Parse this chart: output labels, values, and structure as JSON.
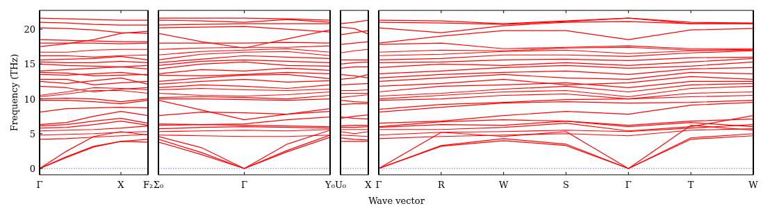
{
  "chart_data": [
    {
      "type": "line",
      "ylabel": "Frequency (THz)",
      "categories": [
        "Γ",
        null,
        null,
        "X",
        "F₂"
      ],
      "ylim": [
        -0.9,
        22.7
      ],
      "yticks": [
        0,
        5,
        10,
        15,
        20
      ],
      "grid": false,
      "line_style": "solid",
      "marker": "none",
      "ref_lines": [
        {
          "axis": "y",
          "value": 0,
          "color": "#0000ff",
          "line_style": "dotted"
        }
      ],
      "series": [
        {
          "color": "#ff0000",
          "values": [
            0,
            1.6,
            3.1,
            3.9,
            3.8
          ]
        },
        {
          "color": "#ff0000",
          "values": [
            0,
            1.7,
            3.2,
            3.9,
            4.2
          ]
        },
        {
          "color": "#ff0000",
          "values": [
            0,
            2.5,
            4.6,
            5.3,
            4.8
          ]
        },
        {
          "color": "#ff0000",
          "values": [
            4.2,
            4.3,
            4.5,
            4.7,
            4.9
          ]
        },
        {
          "color": "#ff0000",
          "values": [
            4.8,
            4.9,
            5.0,
            5.2,
            5.3
          ]
        },
        {
          "color": "#ff0000",
          "values": [
            5.4,
            5.5,
            5.6,
            5.8,
            6.1
          ]
        },
        {
          "color": "#ff0000",
          "values": [
            5.8,
            5.9,
            6.3,
            6.8,
            6.2
          ]
        },
        {
          "color": "#ff0000",
          "values": [
            6.1,
            6.3,
            6.8,
            7.2,
            6.5
          ]
        },
        {
          "color": "#ff0000",
          "values": [
            6.3,
            6.6,
            7.5,
            8.2,
            7.6
          ]
        },
        {
          "color": "#ff0000",
          "values": [
            8.1,
            8.6,
            8.7,
            8.8,
            8.7
          ]
        },
        {
          "color": "#ff0000",
          "values": [
            9.8,
            9.8,
            9.6,
            9.3,
            9.8
          ]
        },
        {
          "color": "#ff0000",
          "values": [
            10.0,
            10.1,
            10.0,
            9.6,
            10.0
          ]
        },
        {
          "color": "#ff0000",
          "values": [
            10.3,
            10.7,
            11.2,
            11.2,
            10.8
          ]
        },
        {
          "color": "#ff0000",
          "values": [
            10.5,
            11.0,
            11.6,
            11.5,
            11.3
          ]
        },
        {
          "color": "#ff0000",
          "values": [
            11.8,
            11.6,
            11.0,
            11.4,
            11.6
          ]
        },
        {
          "color": "#ff0000",
          "values": [
            12.5,
            12.2,
            12.6,
            13.0,
            12.1
          ]
        },
        {
          "color": "#ff0000",
          "values": [
            12.8,
            12.8,
            12.0,
            12.3,
            12.5
          ]
        },
        {
          "color": "#ff0000",
          "values": [
            13.5,
            13.4,
            13.6,
            13.8,
            13.4
          ]
        },
        {
          "color": "#ff0000",
          "values": [
            13.8,
            13.7,
            13.3,
            13.4,
            13.5
          ]
        },
        {
          "color": "#ff0000",
          "values": [
            14.0,
            14.2,
            14.4,
            14.6,
            14.3
          ]
        },
        {
          "color": "#ff0000",
          "values": [
            15.0,
            14.8,
            14.7,
            14.6,
            14.8
          ]
        },
        {
          "color": "#ff0000",
          "values": [
            15.3,
            15.2,
            15.2,
            15.4,
            15.2
          ]
        },
        {
          "color": "#ff0000",
          "values": [
            15.6,
            15.7,
            15.8,
            16.1,
            15.6
          ]
        },
        {
          "color": "#ff0000",
          "values": [
            16.2,
            16.2,
            16.0,
            16.2,
            16.3
          ]
        },
        {
          "color": "#ff0000",
          "values": [
            16.7,
            16.7,
            17.0,
            17.1,
            17.1
          ]
        },
        {
          "color": "#ff0000",
          "values": [
            17.5,
            17.9,
            18.5,
            19.4,
            19.7
          ]
        },
        {
          "color": "#ff0000",
          "values": [
            18.0,
            18.0,
            18.0,
            17.9,
            18.0
          ]
        },
        {
          "color": "#ff0000",
          "values": [
            18.5,
            18.4,
            18.3,
            18.2,
            18.2
          ]
        },
        {
          "color": "#ff0000",
          "values": [
            20.2,
            20.1,
            19.9,
            19.5,
            19.4
          ]
        },
        {
          "color": "#ff0000",
          "values": [
            21.0,
            20.9,
            20.7,
            20.6,
            20.6
          ]
        },
        {
          "color": "#ff0000",
          "values": [
            21.6,
            21.5,
            21.4,
            21.3,
            21.3
          ]
        }
      ]
    },
    {
      "type": "line",
      "xlabel": "Wave vector",
      "categories": [
        "Σ₀",
        null,
        "Γ",
        null,
        "Y₀"
      ],
      "ylim": [
        -0.9,
        22.7
      ],
      "tick_labels": "x",
      "grid": false,
      "line_style": "solid",
      "marker": "none",
      "ref_lines": [
        {
          "axis": "y",
          "value": 0,
          "color": "#0000ff",
          "line_style": "dotted"
        }
      ],
      "series": [
        {
          "color": "#ff0000",
          "values": [
            3.8,
            2.0,
            0,
            2.4,
            4.5
          ]
        },
        {
          "color": "#ff0000",
          "values": [
            4.2,
            2.3,
            0,
            2.6,
            4.8
          ]
        },
        {
          "color": "#ff0000",
          "values": [
            4.6,
            3.0,
            0,
            3.5,
            5.5
          ]
        },
        {
          "color": "#ff0000",
          "values": [
            4.8,
            4.7,
            4.6,
            4.6,
            4.8
          ]
        },
        {
          "color": "#ff0000",
          "values": [
            5.3,
            5.4,
            5.5,
            5.4,
            5.6
          ]
        },
        {
          "color": "#ff0000",
          "values": [
            5.7,
            5.9,
            6.0,
            5.9,
            5.8
          ]
        },
        {
          "color": "#ff0000",
          "values": [
            6.2,
            6.3,
            6.2,
            6.1,
            6.0
          ]
        },
        {
          "color": "#ff0000",
          "values": [
            6.4,
            6.3,
            6.4,
            7.0,
            7.4
          ]
        },
        {
          "color": "#ff0000",
          "values": [
            7.6,
            8.1,
            8.0,
            7.8,
            8.2
          ]
        },
        {
          "color": "#ff0000",
          "values": [
            9.8,
            8.4,
            7.0,
            7.8,
            8.6
          ]
        },
        {
          "color": "#ff0000",
          "values": [
            10.0,
            10.0,
            9.9,
            9.8,
            10.0
          ]
        },
        {
          "color": "#ff0000",
          "values": [
            10.2,
            10.3,
            10.2,
            10.0,
            10.5
          ]
        },
        {
          "color": "#ff0000",
          "values": [
            10.8,
            10.5,
            10.4,
            10.6,
            11.0
          ]
        },
        {
          "color": "#ff0000",
          "values": [
            11.3,
            11.5,
            11.3,
            11.2,
            11.4
          ]
        },
        {
          "color": "#ff0000",
          "values": [
            11.6,
            12.0,
            11.8,
            11.5,
            12.0
          ]
        },
        {
          "color": "#ff0000",
          "values": [
            12.1,
            12.5,
            12.8,
            12.4,
            12.6
          ]
        },
        {
          "color": "#ff0000",
          "values": [
            12.5,
            13.0,
            13.4,
            13.5,
            12.9
          ]
        },
        {
          "color": "#ff0000",
          "values": [
            13.4,
            13.3,
            13.5,
            13.8,
            13.6
          ]
        },
        {
          "color": "#ff0000",
          "values": [
            13.6,
            14.2,
            14.0,
            14.4,
            14.1
          ]
        },
        {
          "color": "#ff0000",
          "values": [
            14.3,
            15.0,
            15.3,
            14.8,
            14.7
          ]
        },
        {
          "color": "#ff0000",
          "values": [
            14.8,
            15.4,
            15.6,
            15.4,
            15.2
          ]
        },
        {
          "color": "#ff0000",
          "values": [
            15.2,
            15.7,
            16.2,
            16.0,
            15.8
          ]
        },
        {
          "color": "#ff0000",
          "values": [
            15.6,
            16.4,
            16.7,
            16.8,
            16.2
          ]
        },
        {
          "color": "#ff0000",
          "values": [
            16.3,
            16.8,
            17.0,
            17.2,
            16.7
          ]
        },
        {
          "color": "#ff0000",
          "values": [
            17.1,
            17.3,
            17.4,
            17.4,
            17.6
          ]
        },
        {
          "color": "#ff0000",
          "values": [
            18.0,
            18.0,
            18.0,
            18.1,
            18.0
          ]
        },
        {
          "color": "#ff0000",
          "values": [
            19.4,
            18.2,
            17.3,
            18.6,
            19.9
          ]
        },
        {
          "color": "#ff0000",
          "values": [
            20.2,
            20.3,
            20.4,
            20.0,
            19.6
          ]
        },
        {
          "color": "#ff0000",
          "values": [
            20.6,
            20.7,
            20.8,
            20.8,
            20.8
          ]
        },
        {
          "color": "#ff0000",
          "values": [
            21.3,
            21.2,
            21.0,
            21.4,
            21.0
          ]
        },
        {
          "color": "#ff0000",
          "values": [
            21.6,
            21.6,
            21.6,
            21.5,
            21.3
          ]
        }
      ]
    },
    {
      "type": "line",
      "categories": [
        "U₀",
        null,
        "X"
      ],
      "ylim": [
        -0.9,
        22.7
      ],
      "tick_labels": "x",
      "grid": false,
      "line_style": "solid",
      "marker": "none",
      "ref_lines": [
        {
          "axis": "y",
          "value": 0,
          "color": "#0000ff",
          "line_style": "dotted"
        }
      ],
      "series": [
        {
          "color": "#ff0000",
          "values": [
            3.9,
            3.9,
            3.9
          ]
        },
        {
          "color": "#ff0000",
          "values": [
            4.4,
            4.2,
            4.1
          ]
        },
        {
          "color": "#ff0000",
          "values": [
            4.8,
            4.7,
            4.6
          ]
        },
        {
          "color": "#ff0000",
          "values": [
            5.3,
            5.0,
            5.3
          ]
        },
        {
          "color": "#ff0000",
          "values": [
            5.6,
            5.6,
            5.6
          ]
        },
        {
          "color": "#ff0000",
          "values": [
            5.9,
            5.9,
            6.0
          ]
        },
        {
          "color": "#ff0000",
          "values": [
            6.1,
            6.2,
            6.2
          ]
        },
        {
          "color": "#ff0000",
          "values": [
            7.2,
            7.5,
            7.7
          ]
        },
        {
          "color": "#ff0000",
          "values": [
            7.4,
            7.2,
            7.1
          ]
        },
        {
          "color": "#ff0000",
          "values": [
            9.2,
            9.3,
            9.3
          ]
        },
        {
          "color": "#ff0000",
          "values": [
            9.8,
            9.6,
            9.5
          ]
        },
        {
          "color": "#ff0000",
          "values": [
            10.2,
            10.4,
            10.6
          ]
        },
        {
          "color": "#ff0000",
          "values": [
            10.8,
            10.8,
            10.8
          ]
        },
        {
          "color": "#ff0000",
          "values": [
            11.2,
            11.2,
            11.3
          ]
        },
        {
          "color": "#ff0000",
          "values": [
            12.0,
            12.1,
            12.2
          ]
        },
        {
          "color": "#ff0000",
          "values": [
            12.8,
            13.0,
            13.5
          ]
        },
        {
          "color": "#ff0000",
          "values": [
            13.5,
            13.3,
            13.0
          ]
        },
        {
          "color": "#ff0000",
          "values": [
            14.4,
            14.6,
            14.6
          ]
        },
        {
          "color": "#ff0000",
          "values": [
            15.0,
            15.2,
            15.3
          ]
        },
        {
          "color": "#ff0000",
          "values": [
            15.6,
            15.6,
            15.6
          ]
        },
        {
          "color": "#ff0000",
          "values": [
            16.6,
            16.9,
            17.1
          ]
        },
        {
          "color": "#ff0000",
          "values": [
            17.8,
            18.0,
            18.2
          ]
        },
        {
          "color": "#ff0000",
          "values": [
            19.2,
            19.5,
            19.8
          ]
        },
        {
          "color": "#ff0000",
          "values": [
            20.3,
            20.1,
            19.3
          ]
        },
        {
          "color": "#ff0000",
          "values": [
            20.8,
            21.0,
            21.3
          ]
        }
      ]
    },
    {
      "type": "line",
      "categories": [
        "Γ",
        "R",
        "W",
        "S",
        "Γ",
        "T",
        "W"
      ],
      "ylim": [
        -0.9,
        22.7
      ],
      "tick_labels": "x",
      "grid": false,
      "line_style": "solid",
      "marker": "none",
      "ref_lines": [
        {
          "axis": "y",
          "value": 0,
          "color": "#0000ff",
          "line_style": "dotted"
        }
      ],
      "series": [
        {
          "color": "#ff0000",
          "values": [
            0,
            3.2,
            4.0,
            3.3,
            0,
            4.2,
            4.7
          ]
        },
        {
          "color": "#ff0000",
          "values": [
            0,
            3.3,
            4.3,
            3.5,
            0,
            4.4,
            5.0
          ]
        },
        {
          "color": "#ff0000",
          "values": [
            0,
            5.2,
            4.6,
            5.3,
            0,
            6.2,
            5.5
          ]
        },
        {
          "color": "#ff0000",
          "values": [
            4.3,
            4.6,
            4.8,
            5.0,
            4.7,
            5.5,
            5.7
          ]
        },
        {
          "color": "#ff0000",
          "values": [
            4.8,
            5.2,
            5.3,
            5.5,
            5.3,
            5.8,
            6.3
          ]
        },
        {
          "color": "#ff0000",
          "values": [
            5.6,
            5.6,
            5.9,
            6.5,
            5.4,
            6.0,
            7.6
          ]
        },
        {
          "color": "#ff0000",
          "values": [
            5.9,
            6.3,
            6.2,
            6.8,
            6.0,
            6.6,
            6.0
          ]
        },
        {
          "color": "#ff0000",
          "values": [
            6.0,
            6.7,
            7.0,
            6.8,
            6.2,
            6.8,
            7.1
          ]
        },
        {
          "color": "#ff0000",
          "values": [
            6.5,
            6.8,
            7.6,
            8.2,
            7.8,
            9.1,
            9.5
          ]
        },
        {
          "color": "#ff0000",
          "values": [
            8.1,
            8.8,
            9.4,
            9.6,
            9.4,
            9.5,
            9.8
          ]
        },
        {
          "color": "#ff0000",
          "values": [
            8.5,
            9.2,
            9.5,
            9.9,
            10.0,
            10.3,
            10.5
          ]
        },
        {
          "color": "#ff0000",
          "values": [
            9.8,
            10.0,
            10.5,
            10.7,
            10.0,
            10.8,
            11.0
          ]
        },
        {
          "color": "#ff0000",
          "values": [
            10.0,
            10.5,
            11.0,
            11.2,
            10.3,
            11.5,
            11.8
          ]
        },
        {
          "color": "#ff0000",
          "values": [
            10.4,
            10.8,
            11.4,
            11.8,
            11.0,
            12.0,
            12.2
          ]
        },
        {
          "color": "#ff0000",
          "values": [
            11.0,
            11.8,
            12.0,
            12.3,
            11.6,
            12.5,
            12.5
          ]
        },
        {
          "color": "#ff0000",
          "values": [
            11.8,
            12.2,
            12.8,
            12.0,
            12.3,
            13.2,
            12.8
          ]
        },
        {
          "color": "#ff0000",
          "values": [
            12.5,
            13.0,
            13.5,
            13.0,
            12.8,
            13.8,
            13.6
          ]
        },
        {
          "color": "#ff0000",
          "values": [
            13.0,
            13.5,
            13.8,
            14.0,
            13.5,
            14.3,
            14.5
          ]
        },
        {
          "color": "#ff0000",
          "values": [
            13.6,
            14.0,
            14.5,
            14.8,
            14.4,
            14.7,
            15.3
          ]
        },
        {
          "color": "#ff0000",
          "values": [
            14.5,
            15.0,
            14.8,
            15.2,
            14.8,
            15.3,
            15.8
          ]
        },
        {
          "color": "#ff0000",
          "values": [
            15.2,
            15.3,
            15.6,
            15.7,
            15.5,
            15.9,
            16.0
          ]
        },
        {
          "color": "#ff0000",
          "values": [
            15.6,
            15.8,
            16.3,
            16.3,
            16.1,
            16.6,
            16.9
          ]
        },
        {
          "color": "#ff0000",
          "values": [
            16.2,
            16.4,
            16.8,
            17.0,
            16.5,
            16.9,
            17.0
          ]
        },
        {
          "color": "#ff0000",
          "values": [
            16.7,
            17.0,
            16.9,
            17.3,
            17.4,
            17.0,
            17.1
          ]
        },
        {
          "color": "#ff0000",
          "values": [
            17.8,
            18.0,
            17.2,
            17.4,
            17.6,
            17.2,
            17.2
          ]
        },
        {
          "color": "#ff0000",
          "values": [
            18.0,
            19.0,
            19.8,
            19.8,
            18.5,
            19.9,
            20.1
          ]
        },
        {
          "color": "#ff0000",
          "values": [
            20.2,
            19.5,
            20.5,
            21.0,
            21.1,
            20.8,
            20.8
          ]
        },
        {
          "color": "#ff0000",
          "values": [
            21.0,
            20.9,
            20.7,
            21.1,
            21.6,
            20.8,
            20.8
          ]
        },
        {
          "color": "#ff0000",
          "values": [
            21.3,
            21.2,
            20.8,
            21.2,
            21.6,
            21.0,
            20.9
          ]
        }
      ]
    }
  ]
}
